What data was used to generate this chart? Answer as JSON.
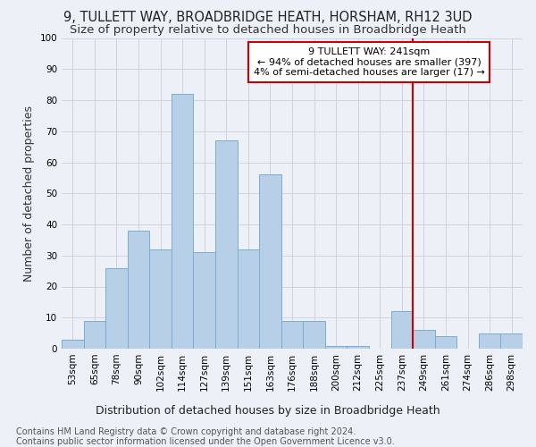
{
  "title1": "9, TULLETT WAY, BROADBRIDGE HEATH, HORSHAM, RH12 3UD",
  "title2": "Size of property relative to detached houses in Broadbridge Heath",
  "xlabel": "Distribution of detached houses by size in Broadbridge Heath",
  "ylabel": "Number of detached properties",
  "footnote1": "Contains HM Land Registry data © Crown copyright and database right 2024.",
  "footnote2": "Contains public sector information licensed under the Open Government Licence v3.0.",
  "categories": [
    "53sqm",
    "65sqm",
    "78sqm",
    "90sqm",
    "102sqm",
    "114sqm",
    "127sqm",
    "139sqm",
    "151sqm",
    "163sqm",
    "176sqm",
    "188sqm",
    "200sqm",
    "212sqm",
    "225sqm",
    "237sqm",
    "249sqm",
    "261sqm",
    "274sqm",
    "286sqm",
    "298sqm"
  ],
  "values": [
    3,
    9,
    26,
    38,
    32,
    82,
    31,
    67,
    32,
    56,
    9,
    9,
    1,
    1,
    0,
    12,
    6,
    4,
    0,
    5,
    5
  ],
  "bar_color": "#b8cfe8",
  "bar_edge_color": "#7aadd4",
  "annotation_text": "9 TULLETT WAY: 241sqm\n← 94% of detached houses are smaller (397)\n4% of semi-detached houses are larger (17) →",
  "annotation_box_color": "#ffffff",
  "annotation_box_edge_color": "#cc0000",
  "vline_color": "#cc0000",
  "vline_index": 15.5,
  "ylim": [
    0,
    100
  ],
  "yticks": [
    0,
    10,
    20,
    30,
    40,
    50,
    60,
    70,
    80,
    90,
    100
  ],
  "grid_color": "#c8d0dc",
  "bg_color": "#edf1f7",
  "title1_fontsize": 10.5,
  "title2_fontsize": 9.5,
  "xlabel_fontsize": 9,
  "ylabel_fontsize": 9,
  "annotation_fontsize": 8,
  "footnote_fontsize": 7,
  "tick_fontsize": 7.5
}
